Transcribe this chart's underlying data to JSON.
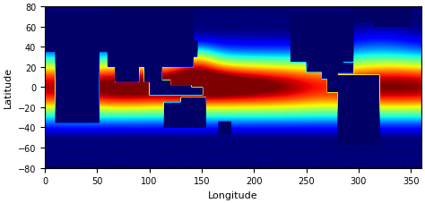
{
  "lon_min": 0,
  "lon_max": 360,
  "lat_min": -80,
  "lat_max": 80,
  "xlabel": "Longitude",
  "ylabel": "Latitude",
  "xticks": [
    0,
    50,
    100,
    150,
    200,
    250,
    300,
    350
  ],
  "yticks": [
    -80,
    -60,
    -40,
    -20,
    0,
    20,
    40,
    60,
    80
  ],
  "colormap": "jet",
  "figsize": [
    4.74,
    2.28
  ],
  "dpi": 100,
  "bg_color": "#000066",
  "label_fontsize": 8,
  "tick_fontsize": 7
}
